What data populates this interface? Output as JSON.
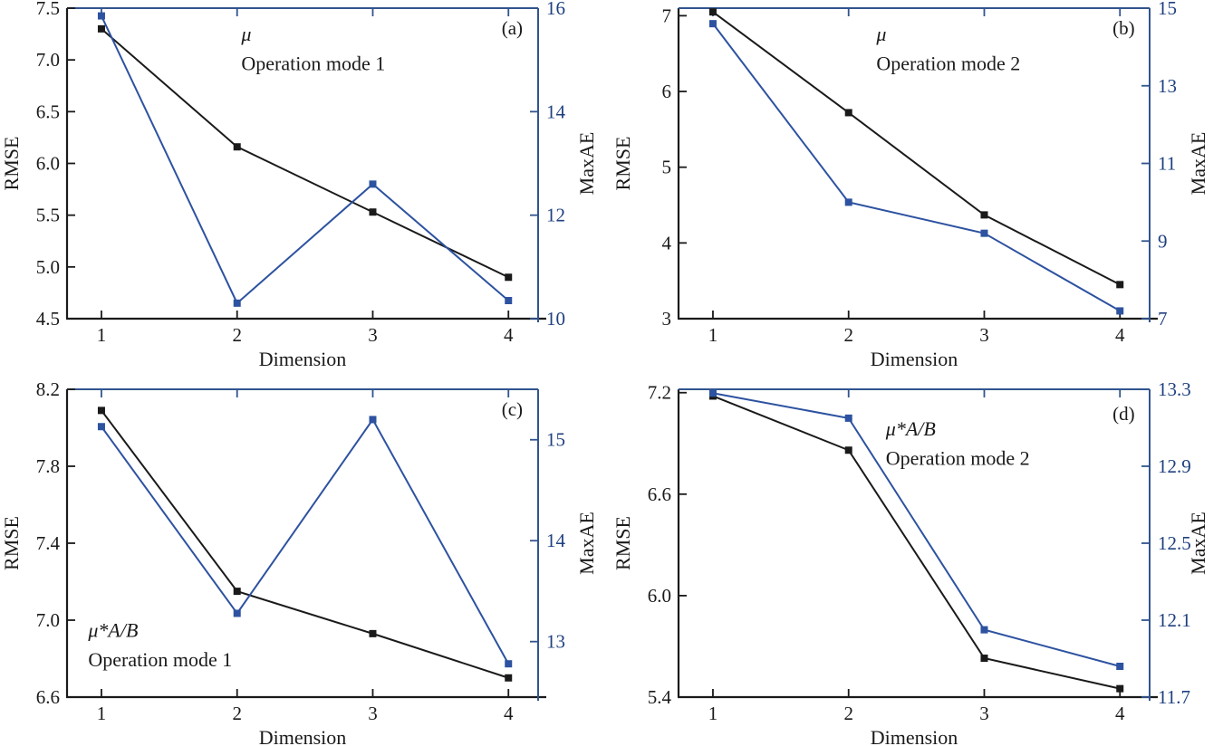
{
  "figure": {
    "title": "",
    "background": "#ffffff",
    "colors": {
      "rmse_series": "#1a1a1a",
      "maxae_series": "#2d52a0",
      "blue_frame": "#31548f",
      "blue_text": "#1f4080",
      "black_text": "#1a1a1a"
    }
  },
  "chart_data": [
    {
      "type": "line",
      "panel_label": "(a)",
      "annotation": [
        "μ",
        "Operation mode 1"
      ],
      "annotation_anchor": {
        "x": 0.37,
        "y1": 0.105,
        "y2": 0.2,
        "align": "start"
      },
      "panel_label_anchor": {
        "x": 0.945,
        "y": 0.085
      },
      "x_categories": [
        "1",
        "2",
        "3",
        "4"
      ],
      "xlabel": "Dimension",
      "left_axis": {
        "label": "RMSE",
        "range": [
          4.5,
          7.5
        ],
        "ticks": [
          4.5,
          5.0,
          5.5,
          6.0,
          6.5,
          7.0,
          7.5
        ],
        "tick_labels": [
          "4.5",
          "5.0",
          "5.5",
          "6.0",
          "6.5",
          "7.0",
          "7.5"
        ]
      },
      "right_axis": {
        "label": "MaxAE",
        "range": [
          10,
          16
        ],
        "ticks": [
          10,
          12,
          14,
          16
        ],
        "tick_labels": [
          "10",
          "12",
          "14",
          "16"
        ]
      },
      "series": [
        {
          "name": "RMSE",
          "axis": "left",
          "values": [
            7.3,
            6.16,
            5.53,
            4.9
          ]
        },
        {
          "name": "MaxAE",
          "axis": "right",
          "values": [
            15.85,
            10.3,
            12.6,
            10.35
          ]
        }
      ]
    },
    {
      "type": "line",
      "panel_label": "(b)",
      "annotation": [
        "μ",
        "Operation mode 2"
      ],
      "annotation_anchor": {
        "x": 0.42,
        "y1": 0.105,
        "y2": 0.2,
        "align": "start"
      },
      "panel_label_anchor": {
        "x": 0.945,
        "y": 0.085
      },
      "x_categories": [
        "1",
        "2",
        "3",
        "4"
      ],
      "xlabel": "Dimension",
      "left_axis": {
        "label": "RMSE",
        "range": [
          3,
          7.1
        ],
        "ticks": [
          3,
          4,
          5,
          6,
          7
        ],
        "tick_labels": [
          "3",
          "4",
          "5",
          "6",
          "7"
        ]
      },
      "right_axis": {
        "label": "MaxAE",
        "range": [
          7,
          15
        ],
        "ticks": [
          7,
          9,
          11,
          13,
          15
        ],
        "tick_labels": [
          "7",
          "9",
          "11",
          "13",
          "15"
        ]
      },
      "series": [
        {
          "name": "RMSE",
          "axis": "left",
          "values": [
            7.05,
            5.72,
            4.37,
            3.45
          ]
        },
        {
          "name": "MaxAE",
          "axis": "right",
          "values": [
            14.6,
            10.0,
            9.2,
            7.2
          ]
        }
      ]
    },
    {
      "type": "line",
      "panel_label": "(c)",
      "annotation": [
        "μ*A/B",
        "Operation mode 1"
      ],
      "annotation_anchor": {
        "x": 0.045,
        "y1": 0.805,
        "y2": 0.9,
        "align": "start"
      },
      "panel_label_anchor": {
        "x": 0.945,
        "y": 0.085
      },
      "x_categories": [
        "1",
        "2",
        "3",
        "4"
      ],
      "xlabel": "Dimension",
      "left_axis": {
        "label": "RMSE",
        "range": [
          6.6,
          8.2
        ],
        "ticks": [
          6.6,
          7.0,
          7.4,
          7.8,
          8.2
        ],
        "tick_labels": [
          "6.6",
          "7.0",
          "7.4",
          "7.8",
          "8.2"
        ]
      },
      "right_axis": {
        "label": "MaxAE",
        "range": [
          12.45,
          15.5
        ],
        "ticks": [
          13,
          14,
          15
        ],
        "tick_labels": [
          "13",
          "14",
          "15"
        ]
      },
      "series": [
        {
          "name": "RMSE",
          "axis": "left",
          "values": [
            8.09,
            7.15,
            6.93,
            6.7
          ]
        },
        {
          "name": "MaxAE",
          "axis": "right",
          "values": [
            15.13,
            13.28,
            15.2,
            12.78
          ]
        }
      ]
    },
    {
      "type": "line",
      "panel_label": "(d)",
      "annotation": [
        "μ*A/B",
        "Operation mode 2"
      ],
      "annotation_anchor": {
        "x": 0.44,
        "y1": 0.15,
        "y2": 0.245,
        "align": "start"
      },
      "panel_label_anchor": {
        "x": 0.945,
        "y": 0.1
      },
      "x_categories": [
        "1",
        "2",
        "3",
        "4"
      ],
      "xlabel": "Dimension",
      "left_axis": {
        "label": "RMSE",
        "range": [
          5.4,
          7.22
        ],
        "ticks": [
          5.4,
          6.0,
          6.6,
          7.2
        ],
        "tick_labels": [
          "5.4",
          "6.0",
          "6.6",
          "7.2"
        ]
      },
      "right_axis": {
        "label": "MaxAE",
        "range": [
          11.7,
          13.3
        ],
        "ticks": [
          11.7,
          12.1,
          12.5,
          12.9,
          13.3
        ],
        "tick_labels": [
          "11.7",
          "12.1",
          "12.5",
          "12.9",
          "13.3"
        ]
      },
      "series": [
        {
          "name": "RMSE",
          "axis": "left",
          "values": [
            7.18,
            6.86,
            5.63,
            5.45
          ]
        },
        {
          "name": "MaxAE",
          "axis": "right",
          "values": [
            13.28,
            13.15,
            12.05,
            11.86
          ]
        }
      ]
    }
  ]
}
